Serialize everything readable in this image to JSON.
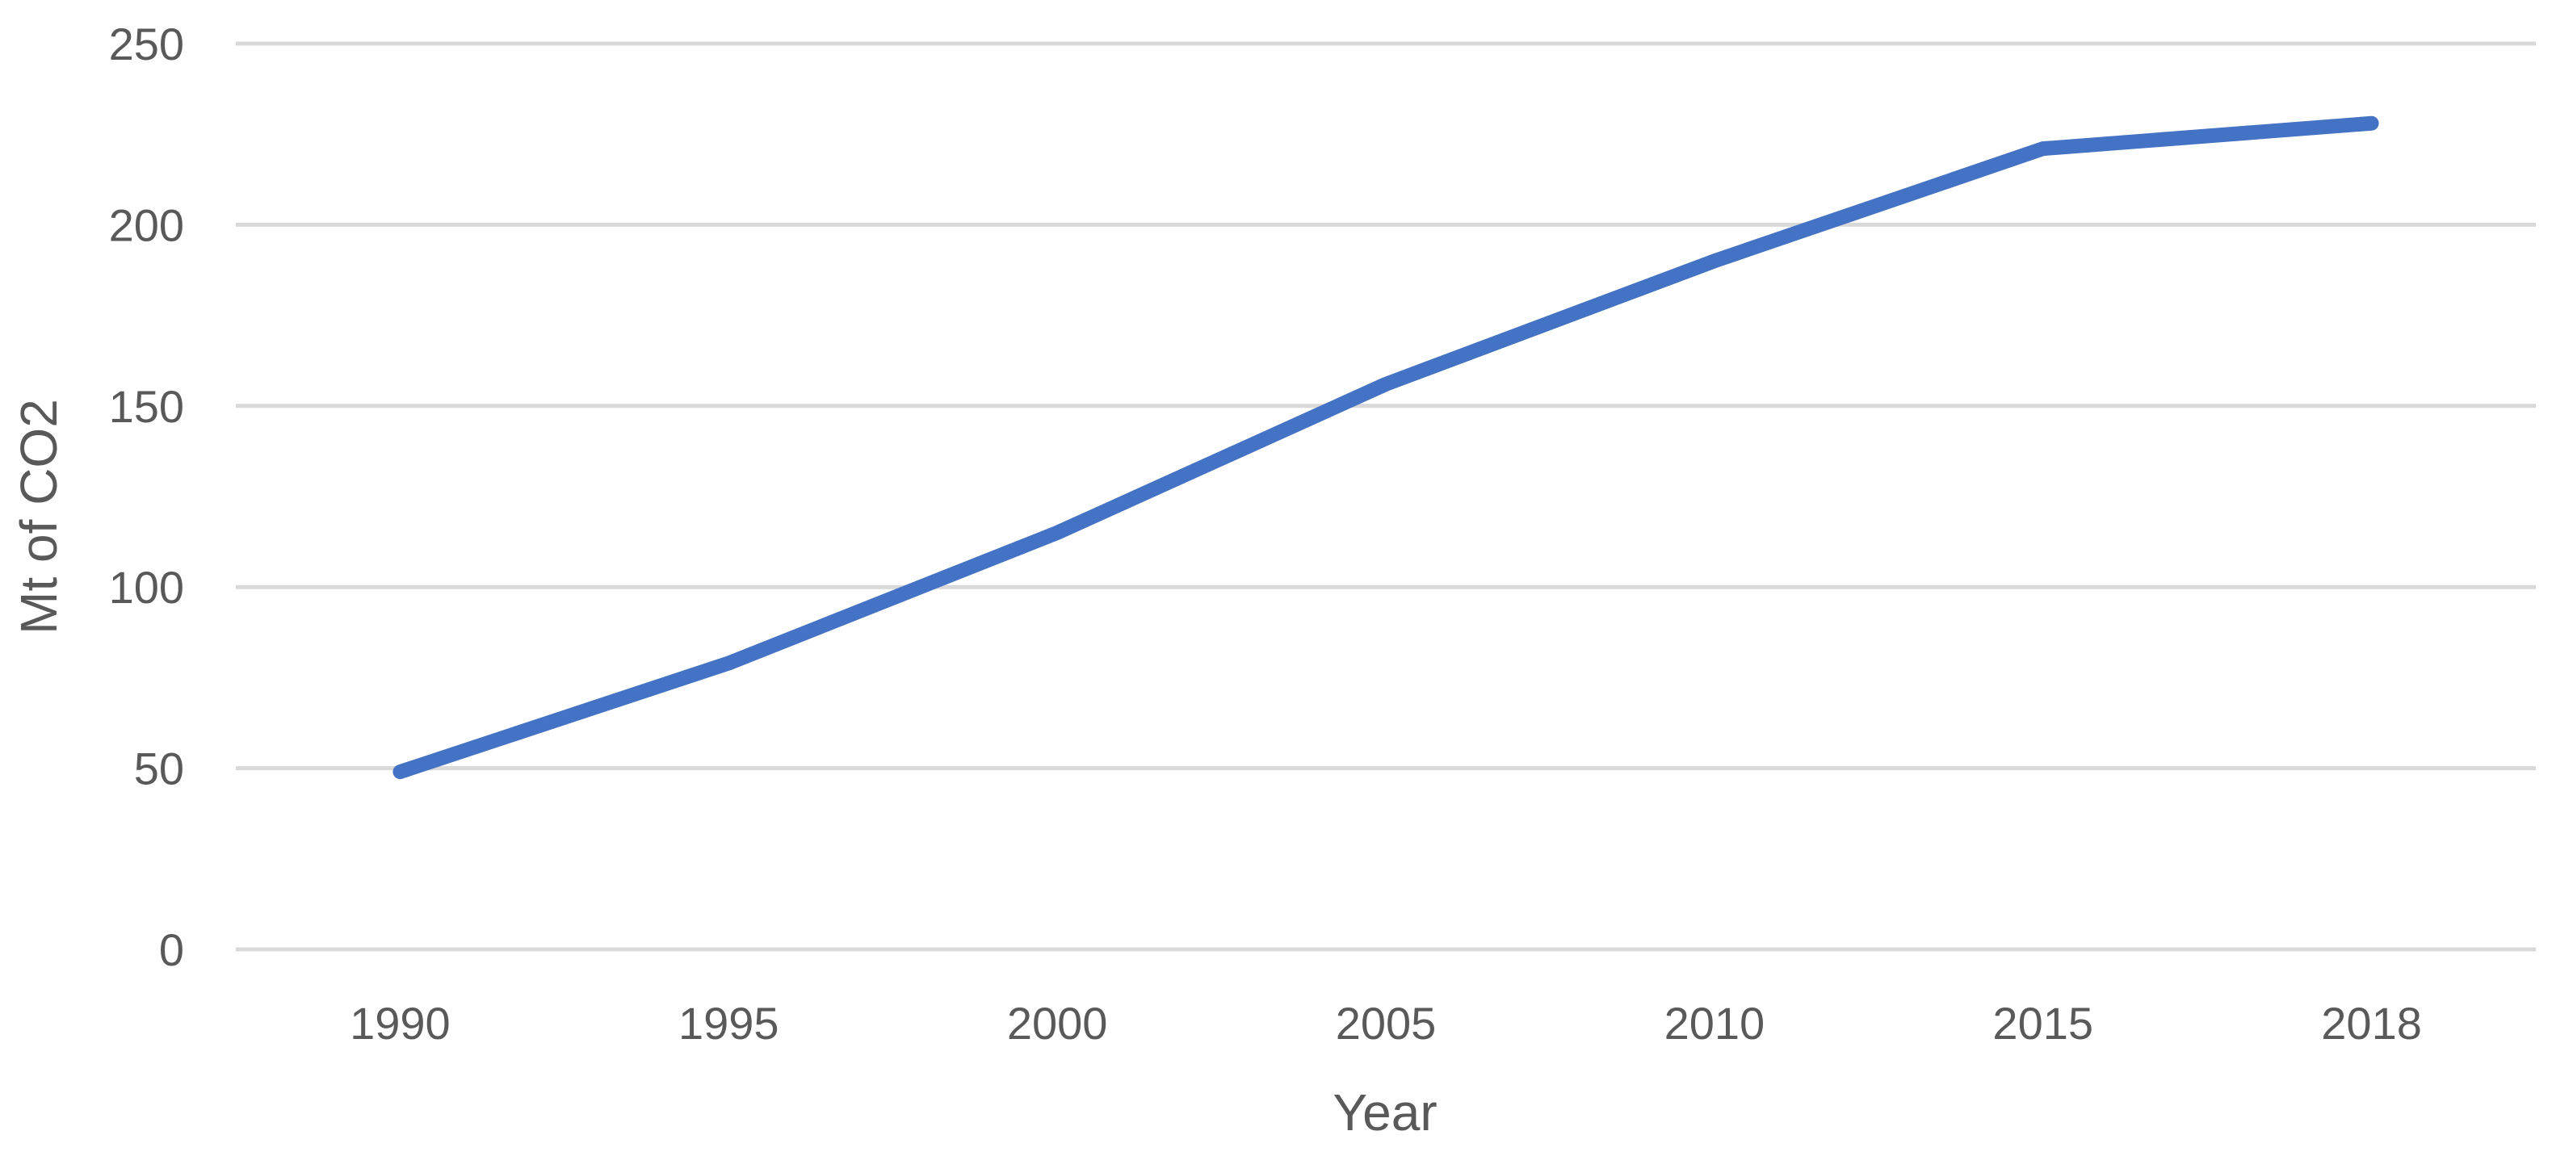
{
  "chart_data": {
    "type": "line",
    "title": "",
    "xlabel": "Year",
    "ylabel": "Mt of CO2",
    "categories": [
      "1990",
      "1995",
      "2000",
      "2005",
      "2010",
      "2015",
      "2018"
    ],
    "series": [
      {
        "values": [
          49,
          79,
          115,
          156,
          190,
          221,
          228
        ]
      }
    ],
    "ylim": [
      0,
      250
    ],
    "yticks": [
      0,
      50,
      100,
      150,
      200,
      250
    ],
    "grid": true,
    "legend": "none",
    "colors": {
      "line": "#4472C4",
      "grid": "#D9D9D9",
      "text": "#595959"
    }
  }
}
